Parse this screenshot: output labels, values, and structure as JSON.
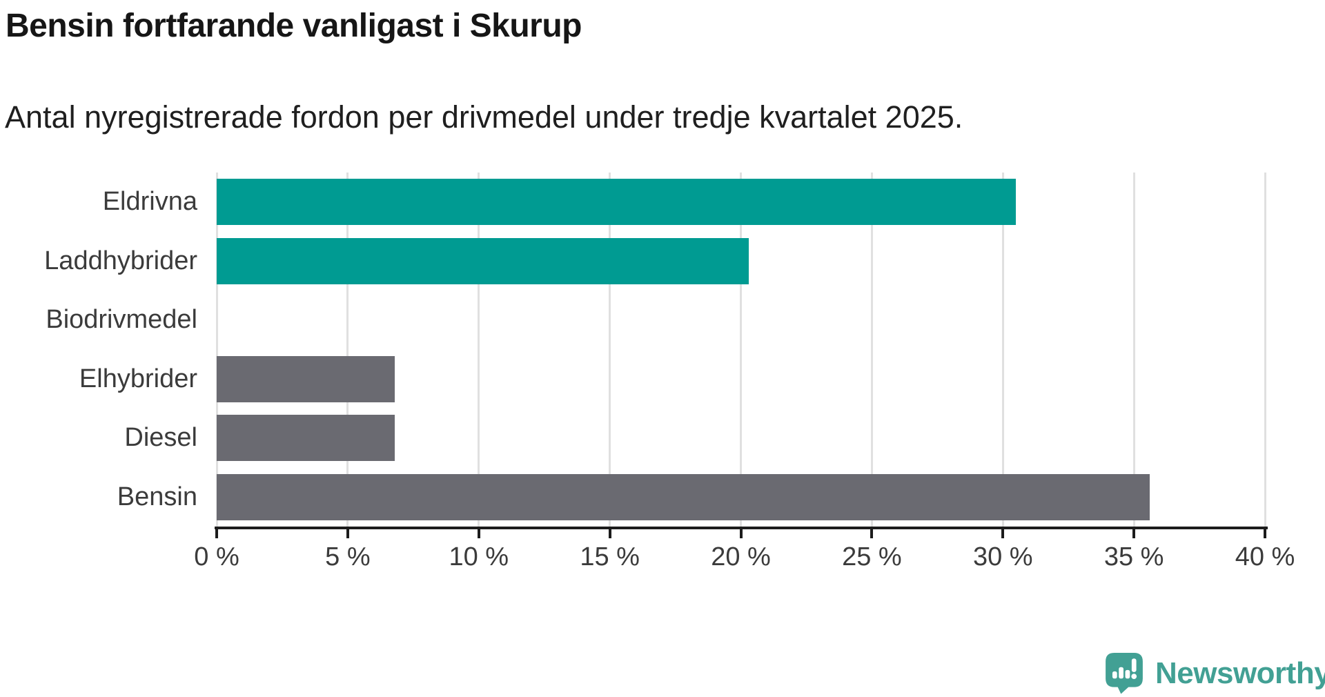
{
  "chart_data": {
    "type": "bar",
    "orientation": "horizontal",
    "title": "Bensin fortfarande vanligast i Skurup",
    "subtitle": "Antal nyregistrerade fordon per drivmedel under tredje kvartalet 2025.",
    "categories": [
      "Eldrivna",
      "Laddhybrider",
      "Biodrivmedel",
      "Elhybrider",
      "Diesel",
      "Bensin"
    ],
    "values": [
      30.5,
      20.3,
      0,
      6.8,
      6.8,
      35.6
    ],
    "unit": "%",
    "bar_colors": [
      "#009b92",
      "#009b92",
      "#6a6a71",
      "#6a6a71",
      "#6a6a71",
      "#6a6a71"
    ],
    "xlim": [
      0,
      40
    ],
    "x_ticks": [
      0,
      5,
      10,
      15,
      20,
      25,
      30,
      35,
      40
    ],
    "x_tick_labels": [
      "0 %",
      "5 %",
      "10 %",
      "15 %",
      "20 %",
      "25 %",
      "30 %",
      "35 %",
      "40 %"
    ],
    "grid": "vertical-only",
    "legend": "none",
    "ylabel": "",
    "xlabel": ""
  },
  "colors": {
    "highlight_teal": "#009b92",
    "neutral_gray": "#6a6a71",
    "gridline": "#e0e0e0",
    "axis": "#1c1c1c",
    "title_text": "#161616",
    "label_text": "#3b3b3b",
    "logo_teal": "#42a094"
  },
  "footer": {
    "logo_text": "Newsworthy"
  }
}
